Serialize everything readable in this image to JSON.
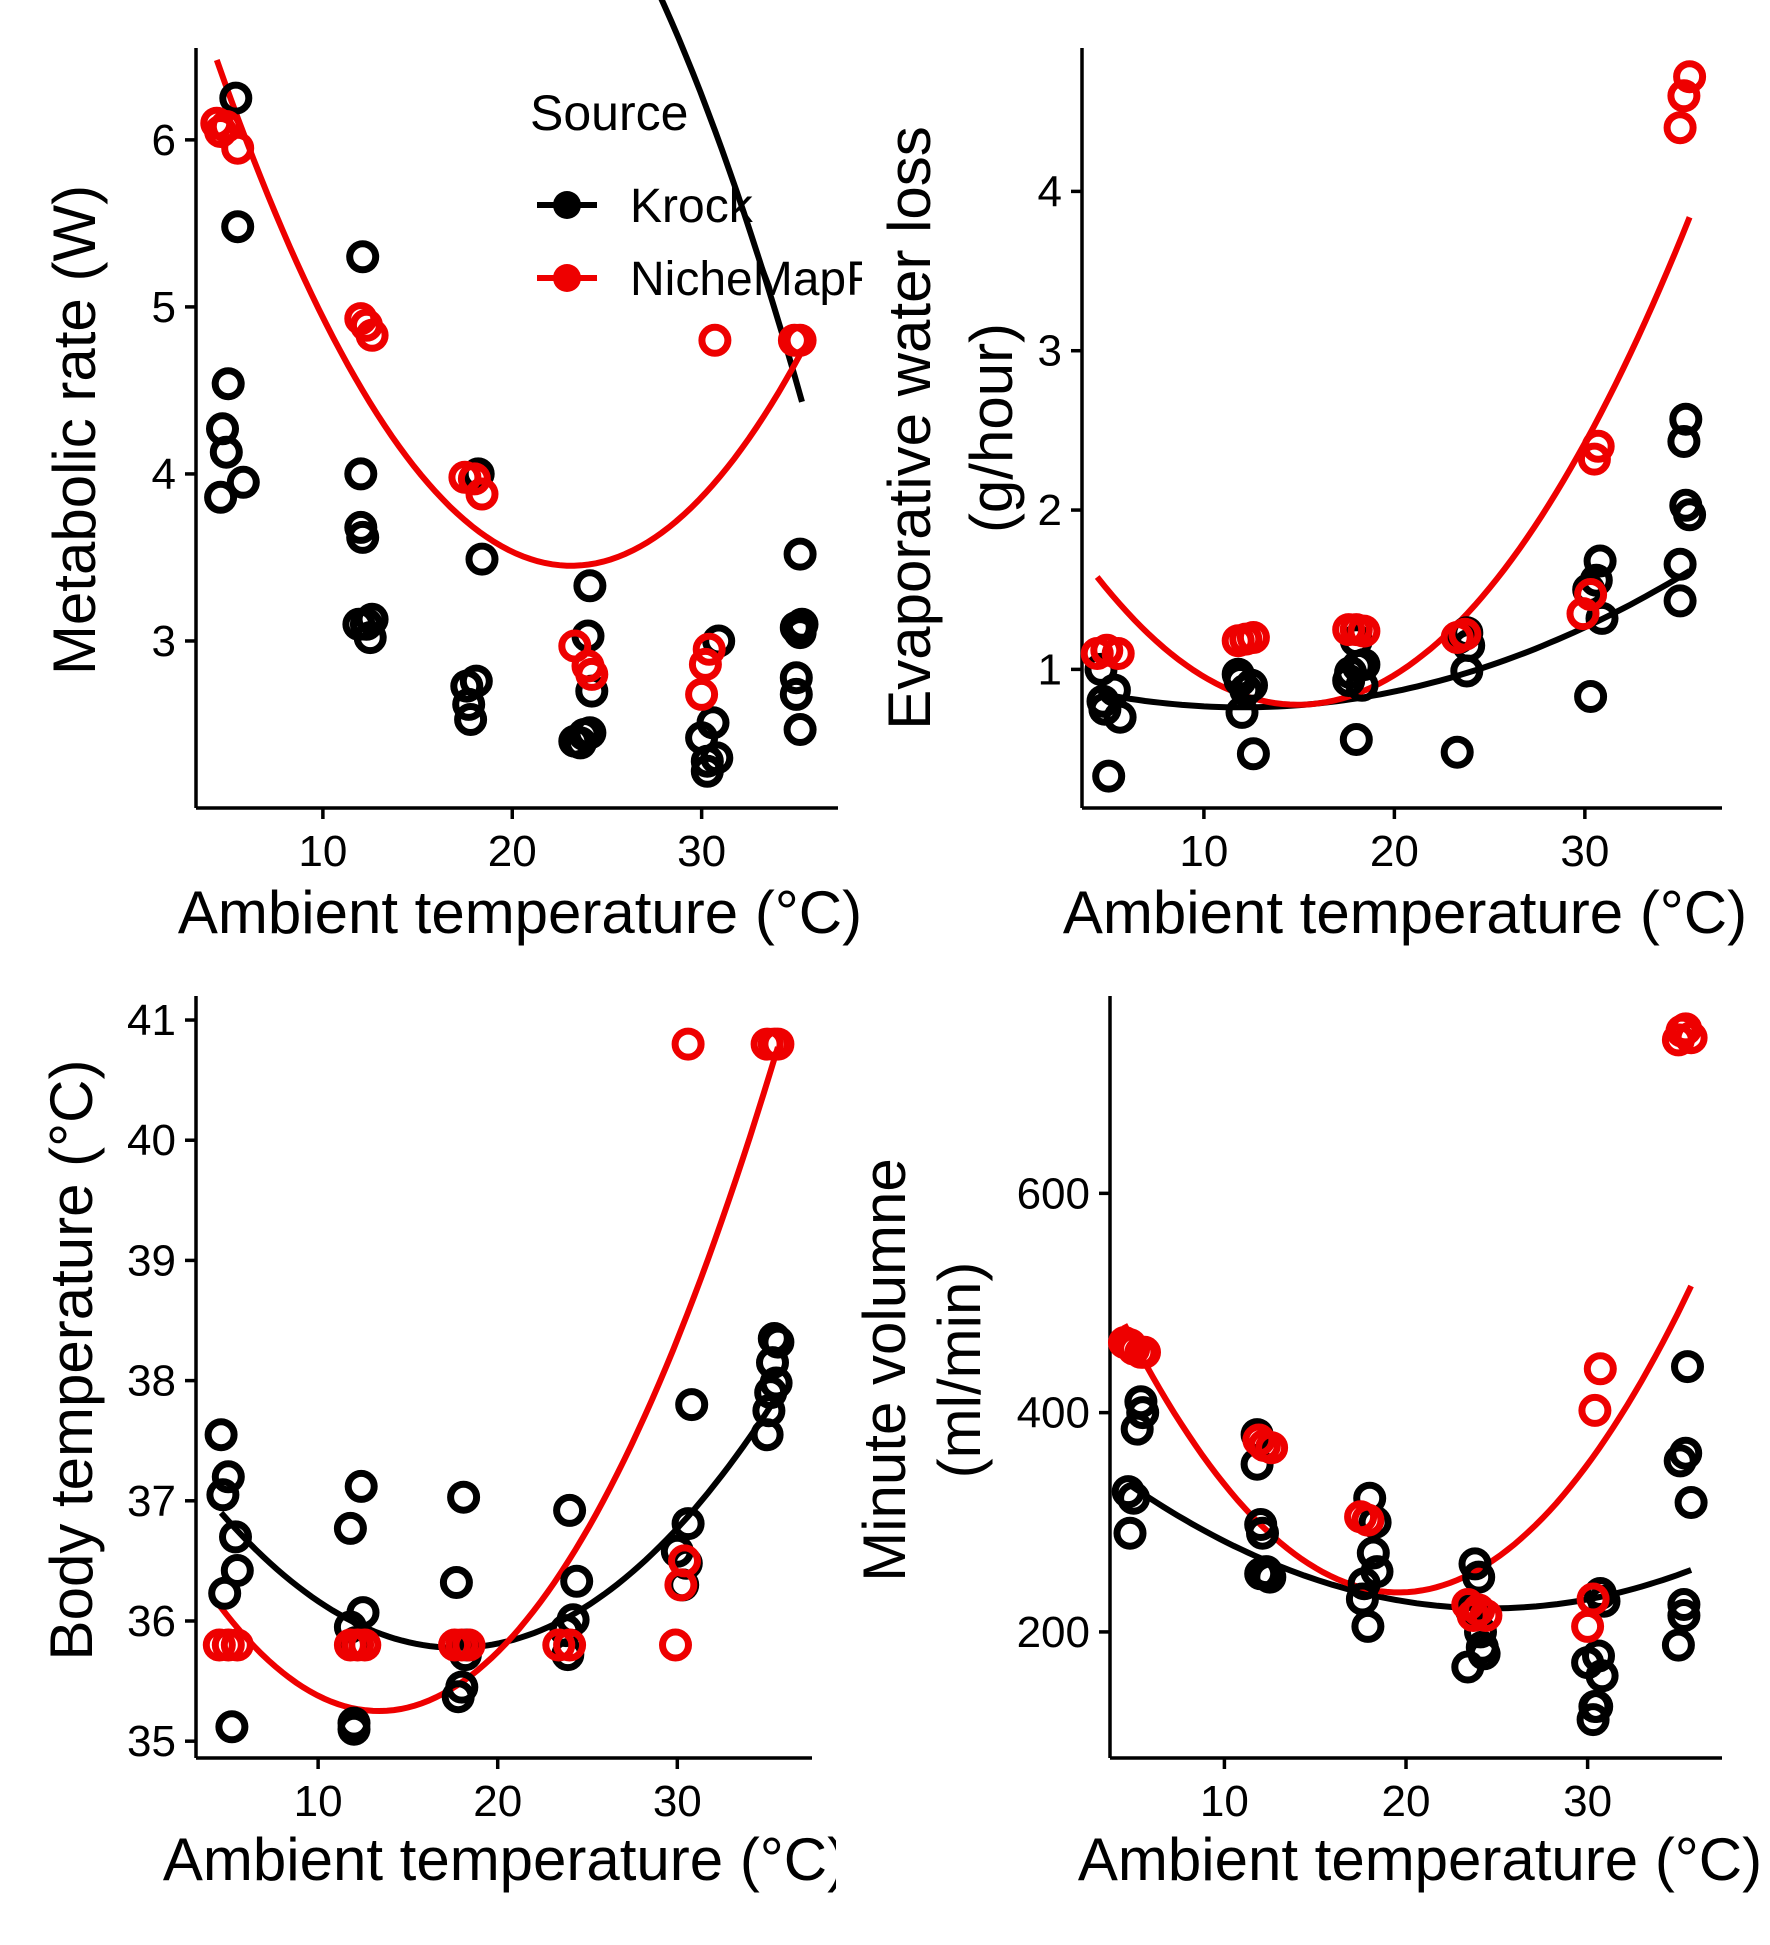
{
  "colors": {
    "Krock": "#000000",
    "NicheMapR": "#ee0000"
  },
  "legend": {
    "title": "Source",
    "entries": [
      {
        "name": "Krock",
        "color": "#000000"
      },
      {
        "name": "NicheMapR",
        "color": "#ee0000"
      }
    ]
  },
  "chart_data": [
    {
      "type": "scatter",
      "xlabel": "Ambient temperature (°C)",
      "ylabel": [
        "Metabolic rate (W)"
      ],
      "xlim": [
        3.3,
        37.2
      ],
      "ylim": [
        2.0,
        6.55
      ],
      "xticks": [
        10,
        20,
        30
      ],
      "yticks": [
        3,
        4,
        5,
        6
      ],
      "legend": "top-right",
      "series": [
        {
          "name": "Krock",
          "points": [
            [
              4.6,
              3.86
            ],
            [
              4.7,
              4.27
            ],
            [
              4.9,
              4.13
            ],
            [
              5.0,
              4.54
            ],
            [
              5.4,
              6.25
            ],
            [
              5.8,
              3.95
            ],
            [
              5.5,
              5.48
            ],
            [
              12.1,
              5.3
            ],
            [
              12.0,
              4.0
            ],
            [
              12.0,
              3.68
            ],
            [
              12.1,
              3.62
            ],
            [
              11.9,
              3.1
            ],
            [
              12.3,
              3.1
            ],
            [
              12.5,
              3.02
            ],
            [
              12.6,
              3.13
            ],
            [
              17.6,
              2.73
            ],
            [
              17.7,
              2.62
            ],
            [
              17.8,
              2.53
            ],
            [
              18.1,
              2.76
            ],
            [
              18.2,
              4.0
            ],
            [
              18.4,
              3.49
            ],
            [
              23.3,
              2.4
            ],
            [
              23.6,
              2.39
            ],
            [
              23.8,
              2.44
            ],
            [
              24.1,
              2.45
            ],
            [
              24.2,
              2.7
            ],
            [
              24.0,
              3.03
            ],
            [
              24.1,
              3.33
            ],
            [
              30.0,
              2.42
            ],
            [
              30.3,
              2.28
            ],
            [
              30.3,
              2.22
            ],
            [
              30.6,
              2.51
            ],
            [
              30.8,
              2.3
            ],
            [
              30.9,
              3.0
            ],
            [
              35.0,
              3.08
            ],
            [
              35.2,
              3.05
            ],
            [
              35.3,
              3.1
            ],
            [
              35.0,
              2.78
            ],
            [
              35.0,
              2.68
            ],
            [
              35.2,
              2.47
            ],
            [
              35.2,
              3.52
            ]
          ],
          "fit": [
            -0.01006,
            0.3107,
            6.0
          ]
        },
        {
          "name": "NicheMapR",
          "points": [
            [
              4.4,
              6.1
            ],
            [
              4.6,
              6.05
            ],
            [
              4.9,
              6.08
            ],
            [
              5.5,
              5.95
            ],
            [
              12.0,
              4.93
            ],
            [
              12.3,
              4.89
            ],
            [
              12.6,
              4.83
            ],
            [
              17.5,
              3.98
            ],
            [
              18.0,
              3.97
            ],
            [
              18.4,
              3.88
            ],
            [
              23.3,
              2.97
            ],
            [
              24.0,
              2.85
            ],
            [
              24.2,
              2.8
            ],
            [
              30.0,
              2.68
            ],
            [
              30.2,
              2.86
            ],
            [
              30.4,
              2.95
            ],
            [
              30.7,
              4.8
            ],
            [
              34.9,
              4.8
            ],
            [
              35.2,
              4.8
            ]
          ],
          "fit": [
            0.00865,
            -0.3998,
            8.07
          ]
        }
      ]
    },
    {
      "type": "scatter",
      "xlabel": "Ambient temperature (°C)",
      "ylabel": [
        "Evaporative water loss",
        "(g/hour)"
      ],
      "xlim": [
        3.6,
        37.2
      ],
      "ylim": [
        0.13,
        4.9
      ],
      "xticks": [
        10,
        20,
        30
      ],
      "yticks": [
        1,
        2,
        3,
        4
      ],
      "legend": "none",
      "series": [
        {
          "name": "Krock",
          "points": [
            [
              4.6,
              1.0
            ],
            [
              4.7,
              0.8
            ],
            [
              4.8,
              0.75
            ],
            [
              5.0,
              0.33
            ],
            [
              5.3,
              0.87
            ],
            [
              5.6,
              0.7
            ],
            [
              11.8,
              0.97
            ],
            [
              11.9,
              0.93
            ],
            [
              12.0,
              0.73
            ],
            [
              12.2,
              0.87
            ],
            [
              12.5,
              0.9
            ],
            [
              12.6,
              0.47
            ],
            [
              17.6,
              0.93
            ],
            [
              17.7,
              0.98
            ],
            [
              18.0,
              1.18
            ],
            [
              18.1,
              1.02
            ],
            [
              18.0,
              0.56
            ],
            [
              18.3,
              0.9
            ],
            [
              18.4,
              1.03
            ],
            [
              23.4,
              1.2
            ],
            [
              23.3,
              0.48
            ],
            [
              23.8,
              1.23
            ],
            [
              23.9,
              1.15
            ],
            [
              23.8,
              0.99
            ],
            [
              30.2,
              1.5
            ],
            [
              30.3,
              0.83
            ],
            [
              30.6,
              1.56
            ],
            [
              30.8,
              1.68
            ],
            [
              30.9,
              1.32
            ],
            [
              35.0,
              1.66
            ],
            [
              35.0,
              1.43
            ],
            [
              35.2,
              2.43
            ],
            [
              35.3,
              2.57
            ],
            [
              35.3,
              2.03
            ],
            [
              35.5,
              1.97
            ]
          ],
          "fit": [
            0.00155,
            -0.0372,
            0.985
          ]
        },
        {
          "name": "NicheMapR",
          "points": [
            [
              4.4,
              1.1
            ],
            [
              4.9,
              1.12
            ],
            [
              5.5,
              1.1
            ],
            [
              11.8,
              1.18
            ],
            [
              12.2,
              1.19
            ],
            [
              12.6,
              1.2
            ],
            [
              17.6,
              1.25
            ],
            [
              18.0,
              1.25
            ],
            [
              18.4,
              1.24
            ],
            [
              23.3,
              1.2
            ],
            [
              23.7,
              1.22
            ],
            [
              29.9,
              1.35
            ],
            [
              30.3,
              1.47
            ],
            [
              30.5,
              2.32
            ],
            [
              30.7,
              2.4
            ],
            [
              35.0,
              4.4
            ],
            [
              35.2,
              4.6
            ],
            [
              35.5,
              4.72
            ]
          ],
          "fit": [
            0.00723,
            -0.2159,
            2.39
          ]
        }
      ]
    },
    {
      "type": "scatter",
      "xlabel": "Ambient temperature (°C)",
      "ylabel": [
        "Body temperature (°C)"
      ],
      "xlim": [
        3.2,
        37.5
      ],
      "ylim": [
        34.86,
        41.2
      ],
      "xticks": [
        10,
        20,
        30
      ],
      "yticks": [
        35,
        36,
        37,
        38,
        39,
        40,
        41
      ],
      "legend": "none",
      "series": [
        {
          "name": "Krock",
          "points": [
            [
              4.6,
              37.55
            ],
            [
              4.7,
              37.05
            ],
            [
              4.8,
              36.23
            ],
            [
              5.0,
              37.2
            ],
            [
              5.2,
              35.12
            ],
            [
              5.4,
              36.7
            ],
            [
              5.5,
              36.42
            ],
            [
              11.8,
              35.95
            ],
            [
              11.8,
              36.77
            ],
            [
              12.0,
              35.1
            ],
            [
              12.1,
              35.82
            ],
            [
              12.0,
              35.15
            ],
            [
              12.4,
              37.12
            ],
            [
              12.5,
              36.07
            ],
            [
              17.7,
              36.32
            ],
            [
              17.8,
              35.37
            ],
            [
              18.0,
              35.45
            ],
            [
              18.1,
              37.03
            ],
            [
              18.2,
              35.72
            ],
            [
              18.3,
              35.8
            ],
            [
              23.8,
              35.92
            ],
            [
              23.9,
              35.72
            ],
            [
              24.0,
              36.92
            ],
            [
              24.2,
              36.01
            ],
            [
              24.4,
              36.33
            ],
            [
              30.0,
              36.58
            ],
            [
              30.3,
              36.3
            ],
            [
              30.5,
              36.48
            ],
            [
              30.6,
              36.81
            ],
            [
              30.8,
              37.8
            ],
            [
              35.0,
              37.55
            ],
            [
              35.1,
              37.75
            ],
            [
              35.2,
              37.9
            ],
            [
              35.3,
              38.15
            ],
            [
              35.4,
              38.35
            ],
            [
              35.5,
              37.98
            ],
            [
              35.6,
              38.32
            ]
          ],
          "fit": [
            0.00656,
            -0.2321,
            37.83
          ]
        },
        {
          "name": "NicheMapR",
          "points": [
            [
              4.5,
              35.8
            ],
            [
              5.0,
              35.8
            ],
            [
              5.5,
              35.8
            ],
            [
              11.8,
              35.8
            ],
            [
              12.2,
              35.8
            ],
            [
              12.6,
              35.8
            ],
            [
              17.6,
              35.8
            ],
            [
              18.0,
              35.8
            ],
            [
              18.4,
              35.8
            ],
            [
              23.4,
              35.8
            ],
            [
              24.0,
              35.8
            ],
            [
              29.9,
              35.8
            ],
            [
              30.2,
              36.3
            ],
            [
              30.4,
              36.5
            ],
            [
              30.6,
              40.8
            ],
            [
              35.0,
              40.8
            ],
            [
              35.4,
              40.8
            ],
            [
              35.6,
              40.8
            ]
          ],
          "fit": [
            0.01118,
            -0.299,
            37.25
          ]
        }
      ]
    },
    {
      "type": "scatter",
      "xlabel": "Ambient temperature (°C)",
      "ylabel": [
        "Minute volumne",
        "(ml/min)"
      ],
      "xlim": [
        3.7,
        37.4
      ],
      "ylim": [
        85,
        780
      ],
      "xticks": [
        10,
        20,
        30
      ],
      "yticks": [
        200,
        400,
        600
      ],
      "legend": "none",
      "series": [
        {
          "name": "Krock",
          "points": [
            [
              4.7,
              328
            ],
            [
              4.8,
              290
            ],
            [
              5.0,
              322
            ],
            [
              5.2,
              385
            ],
            [
              5.4,
              410
            ],
            [
              5.5,
              400
            ],
            [
              11.8,
              380
            ],
            [
              11.8,
              353
            ],
            [
              12.0,
              298
            ],
            [
              12.1,
              290
            ],
            [
              12.0,
              253
            ],
            [
              12.3,
              255
            ],
            [
              12.5,
              250
            ],
            [
              17.6,
              230
            ],
            [
              17.7,
              244
            ],
            [
              17.9,
              205
            ],
            [
              18.0,
              322
            ],
            [
              18.2,
              272
            ],
            [
              18.3,
              300
            ],
            [
              18.4,
              255
            ],
            [
              23.4,
              168
            ],
            [
              23.6,
              220
            ],
            [
              23.8,
              262
            ],
            [
              24.0,
              250
            ],
            [
              24.1,
              200
            ],
            [
              24.2,
              186
            ],
            [
              24.3,
              180
            ],
            [
              30.0,
              172
            ],
            [
              30.3,
              120
            ],
            [
              30.4,
              132
            ],
            [
              30.5,
              132
            ],
            [
              30.6,
              178
            ],
            [
              30.7,
              235
            ],
            [
              30.8,
              160
            ],
            [
              30.9,
              228
            ],
            [
              35.0,
              188
            ],
            [
              35.1,
              356
            ],
            [
              35.3,
              225
            ],
            [
              35.3,
              215
            ],
            [
              35.4,
              363
            ],
            [
              35.5,
              442
            ],
            [
              35.7,
              318
            ]
          ],
          "fit": [
            0.286,
            -14.09,
            395
          ]
        },
        {
          "name": "NicheMapR",
          "points": [
            [
              4.5,
              464
            ],
            [
              4.8,
              462
            ],
            [
              5.0,
              458
            ],
            [
              5.4,
              455
            ],
            [
              5.6,
              455
            ],
            [
              11.9,
              375
            ],
            [
              12.2,
              370
            ],
            [
              12.6,
              368
            ],
            [
              17.5,
              305
            ],
            [
              17.9,
              302
            ],
            [
              23.4,
              225
            ],
            [
              23.7,
              215
            ],
            [
              24.0,
              220
            ],
            [
              24.4,
              215
            ],
            [
              30.0,
              205
            ],
            [
              30.3,
              230
            ],
            [
              30.4,
              402
            ],
            [
              30.7,
              440
            ],
            [
              35.0,
              740
            ],
            [
              35.2,
              748
            ],
            [
              35.4,
              750
            ],
            [
              35.7,
              742
            ]
          ],
          "fit": [
            1.075,
            -42.09,
            648
          ]
        }
      ]
    }
  ]
}
